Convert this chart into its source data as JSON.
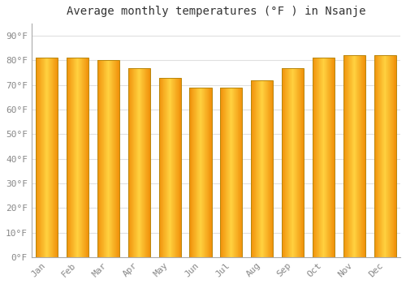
{
  "title": "Average monthly temperatures (°F ) in Nsanje",
  "categories": [
    "Jan",
    "Feb",
    "Mar",
    "Apr",
    "May",
    "Jun",
    "Jul",
    "Aug",
    "Sep",
    "Oct",
    "Nov",
    "Dec"
  ],
  "values": [
    81,
    81,
    80,
    77,
    73,
    69,
    69,
    72,
    77,
    81,
    82,
    82
  ],
  "bar_color_center": "#FFD040",
  "bar_color_edge": "#F0900A",
  "bar_outline_color": "#B8860B",
  "background_color": "#FFFFFF",
  "grid_color": "#E0E0E0",
  "yticks": [
    0,
    10,
    20,
    30,
    40,
    50,
    60,
    70,
    80,
    90
  ],
  "ytick_labels": [
    "0°F",
    "10°F",
    "20°F",
    "30°F",
    "40°F",
    "50°F",
    "60°F",
    "70°F",
    "80°F",
    "90°F"
  ],
  "ylim": [
    0,
    95
  ],
  "title_fontsize": 10,
  "tick_fontsize": 8,
  "font_color": "#888888",
  "title_color": "#333333"
}
